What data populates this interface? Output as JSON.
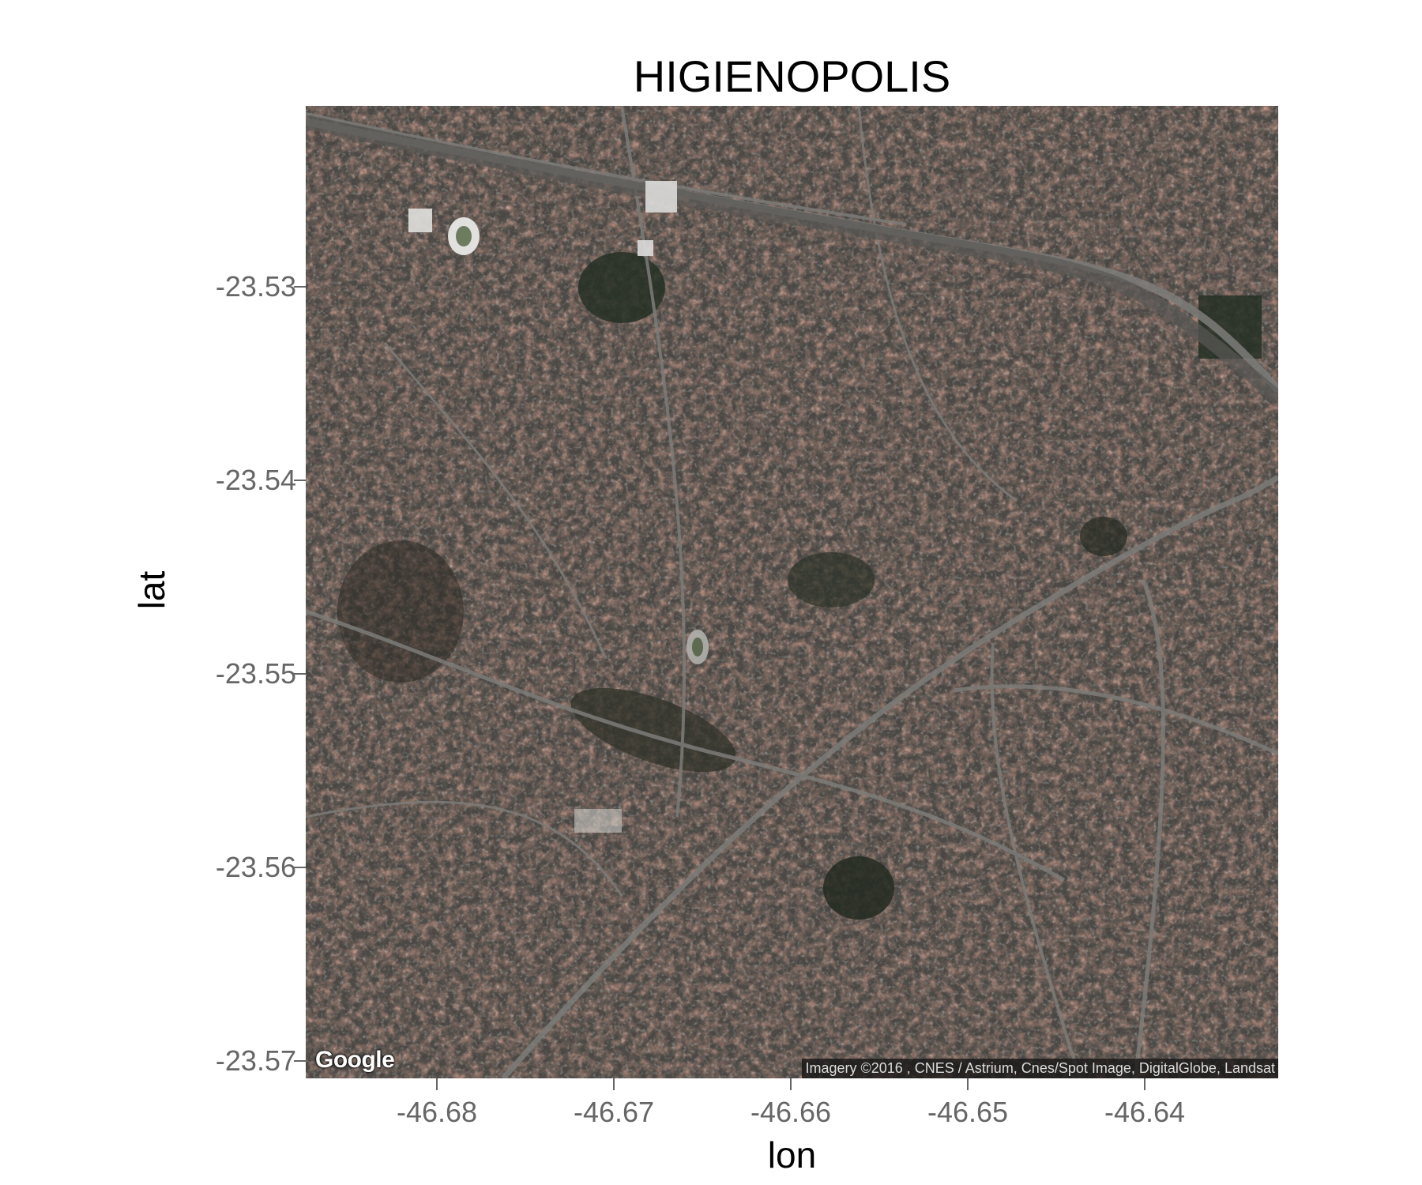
{
  "title": "HIGIENOPOLIS",
  "xlabel": "lon",
  "ylabel": "lat",
  "x_ticks": [
    "-46.68",
    "-46.67",
    "-46.66",
    "-46.65",
    "-46.64"
  ],
  "y_ticks": [
    "-23.53",
    "-23.54",
    "-23.55",
    "-23.56",
    "-23.57"
  ],
  "map": {
    "source": "Google",
    "attribution": "Imagery ©2016 , CNES / Astrium, Cnes/Spot Image, DigitalGlobe, Landsat",
    "maptype": "satellite",
    "lon_range": [
      -46.6873,
      -46.6324
    ],
    "lat_range": [
      -23.5709,
      -23.5206
    ],
    "colors": {
      "urban": "#4a4643",
      "roof": "#8a4e3c",
      "vegetation": "#2b3025",
      "road": "#7a7a78"
    }
  },
  "chart_data": {
    "type": "map",
    "title": "HIGIENOPOLIS",
    "xlabel": "lon",
    "ylabel": "lat",
    "xlim": [
      -46.6873,
      -46.6324
    ],
    "ylim": [
      -23.5709,
      -23.5206
    ],
    "x_ticks": [
      -46.68,
      -46.67,
      -46.66,
      -46.65,
      -46.64
    ],
    "y_ticks": [
      -23.53,
      -23.54,
      -23.55,
      -23.56,
      -23.57
    ],
    "grid": false
  }
}
